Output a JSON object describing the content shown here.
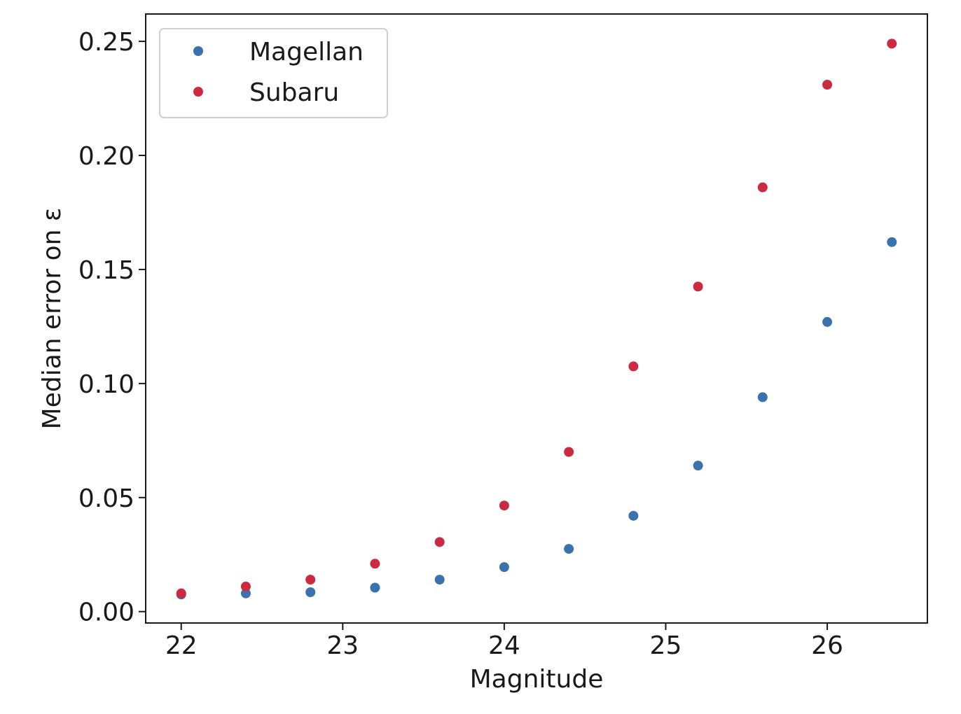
{
  "chart_data": {
    "type": "scatter",
    "title": "",
    "xlabel": "Magnitude",
    "ylabel": "Median error on ε",
    "xlim": [
      21.78,
      26.62
    ],
    "ylim": [
      -0.005,
      0.262
    ],
    "xticks": [
      22,
      23,
      24,
      25,
      26
    ],
    "yticks": [
      0.0,
      0.05,
      0.1,
      0.15,
      0.2,
      0.25
    ],
    "ytick_labels": [
      "0.00",
      "0.05",
      "0.10",
      "0.15",
      "0.20",
      "0.25"
    ],
    "grid": false,
    "legend_position": "top-left",
    "series": [
      {
        "name": "Magellan",
        "color": "#3a72b0",
        "x": [
          22.0,
          22.4,
          22.8,
          23.2,
          23.6,
          24.0,
          24.4,
          24.8,
          25.2,
          25.6,
          26.0,
          26.4
        ],
        "y": [
          0.0075,
          0.008,
          0.0085,
          0.0105,
          0.014,
          0.0195,
          0.0275,
          0.042,
          0.064,
          0.094,
          0.127,
          0.162
        ]
      },
      {
        "name": "Subaru",
        "color": "#cc2a41",
        "x": [
          22.0,
          22.4,
          22.8,
          23.2,
          23.6,
          24.0,
          24.4,
          24.8,
          25.2,
          25.6,
          26.0,
          26.4
        ],
        "y": [
          0.008,
          0.011,
          0.014,
          0.021,
          0.0305,
          0.0465,
          0.07,
          0.1075,
          0.1425,
          0.186,
          0.231,
          0.249
        ]
      }
    ]
  }
}
